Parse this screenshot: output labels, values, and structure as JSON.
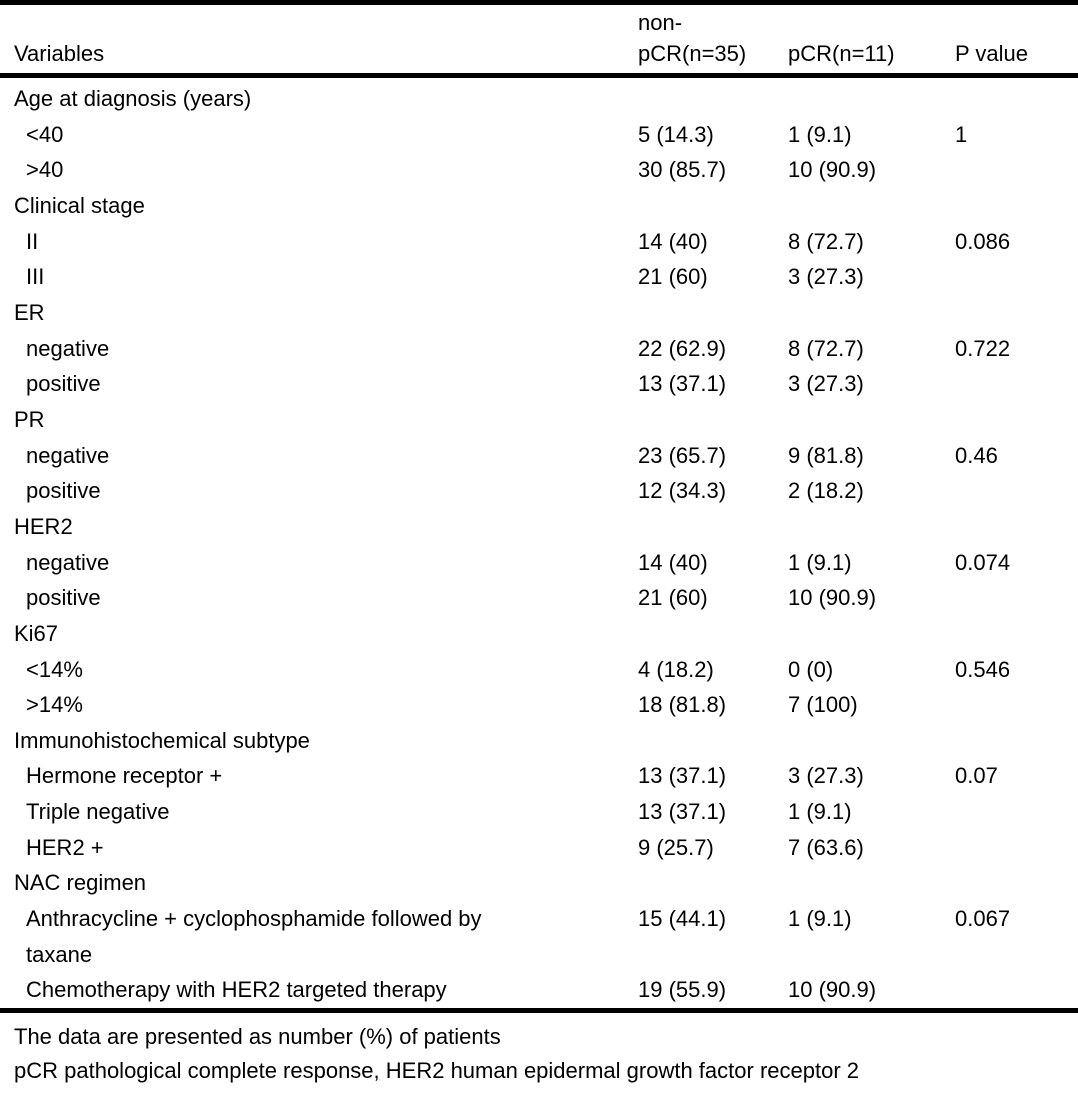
{
  "table": {
    "columns": [
      "Variables",
      "non-\npCR(n=35)",
      "pCR(n=11)",
      "P value"
    ],
    "rows": [
      {
        "type": "section",
        "label": "Age at diagnosis (years)",
        "non_pcr": "",
        "pcr": "",
        "p": ""
      },
      {
        "type": "item",
        "label": "<40",
        "non_pcr": "5 (14.3)",
        "pcr": "1 (9.1)",
        "p": "1"
      },
      {
        "type": "item",
        "label": ">40",
        "non_pcr": "30 (85.7)",
        "pcr": "10 (90.9)",
        "p": ""
      },
      {
        "type": "section",
        "label": "Clinical stage",
        "non_pcr": "",
        "pcr": "",
        "p": ""
      },
      {
        "type": "item",
        "label": "II",
        "non_pcr": "14 (40)",
        "pcr": "8 (72.7)",
        "p": "0.086"
      },
      {
        "type": "item",
        "label": "III",
        "non_pcr": "21 (60)",
        "pcr": "3 (27.3)",
        "p": ""
      },
      {
        "type": "section",
        "label": "ER",
        "non_pcr": "",
        "pcr": "",
        "p": ""
      },
      {
        "type": "item",
        "label": "negative",
        "non_pcr": "22 (62.9)",
        "pcr": "8 (72.7)",
        "p": "0.722"
      },
      {
        "type": "item",
        "label": "positive",
        "non_pcr": "13 (37.1)",
        "pcr": "3 (27.3)",
        "p": ""
      },
      {
        "type": "section",
        "label": "PR",
        "non_pcr": "",
        "pcr": "",
        "p": ""
      },
      {
        "type": "item",
        "label": "negative",
        "non_pcr": "23 (65.7)",
        "pcr": "9 (81.8)",
        "p": "0.46"
      },
      {
        "type": "item",
        "label": "positive",
        "non_pcr": "12 (34.3)",
        "pcr": "2 (18.2)",
        "p": ""
      },
      {
        "type": "section",
        "label": "HER2",
        "non_pcr": "",
        "pcr": "",
        "p": ""
      },
      {
        "type": "item",
        "label": "negative",
        "non_pcr": "14 (40)",
        "pcr": "1 (9.1)",
        "p": "0.074"
      },
      {
        "type": "item",
        "label": "positive",
        "non_pcr": "21 (60)",
        "pcr": "10 (90.9)",
        "p": ""
      },
      {
        "type": "section",
        "label": "Ki67",
        "non_pcr": "",
        "pcr": "",
        "p": ""
      },
      {
        "type": "item",
        "label": "<14%",
        "non_pcr": "4 (18.2)",
        "pcr": "0 (0)",
        "p": "0.546"
      },
      {
        "type": "item",
        "label": ">14%",
        "non_pcr": "18 (81.8)",
        "pcr": "7 (100)",
        "p": ""
      },
      {
        "type": "section",
        "label": "Immunohistochemical subtype",
        "non_pcr": "",
        "pcr": "",
        "p": ""
      },
      {
        "type": "item",
        "label": "Hermone receptor +",
        "non_pcr": "13 (37.1)",
        "pcr": "3 (27.3)",
        "p": "0.07"
      },
      {
        "type": "item",
        "label": "Triple negative",
        "non_pcr": "13 (37.1)",
        "pcr": "1 (9.1)",
        "p": ""
      },
      {
        "type": "item",
        "label": "HER2 +",
        "non_pcr": "9 (25.7)",
        "pcr": "7 (63.6)",
        "p": ""
      },
      {
        "type": "section",
        "label": "NAC regimen",
        "non_pcr": "",
        "pcr": "",
        "p": ""
      },
      {
        "type": "item",
        "label": "Anthracycline + cyclophosphamide followed by\ntaxane",
        "non_pcr": "15 (44.1)",
        "pcr": "1 (9.1)",
        "p": "0.067"
      },
      {
        "type": "item",
        "label": "Chemotherapy with HER2 targeted therapy",
        "non_pcr": "19 (55.9)",
        "pcr": "10 (90.9)",
        "p": ""
      }
    ],
    "footnotes": [
      "The data are presented as number (%) of patients",
      "pCR pathological complete response, HER2 human epidermal growth factor receptor 2"
    ]
  },
  "colors": {
    "text": "#000000",
    "background": "#ffffff",
    "rule": "#000000"
  }
}
